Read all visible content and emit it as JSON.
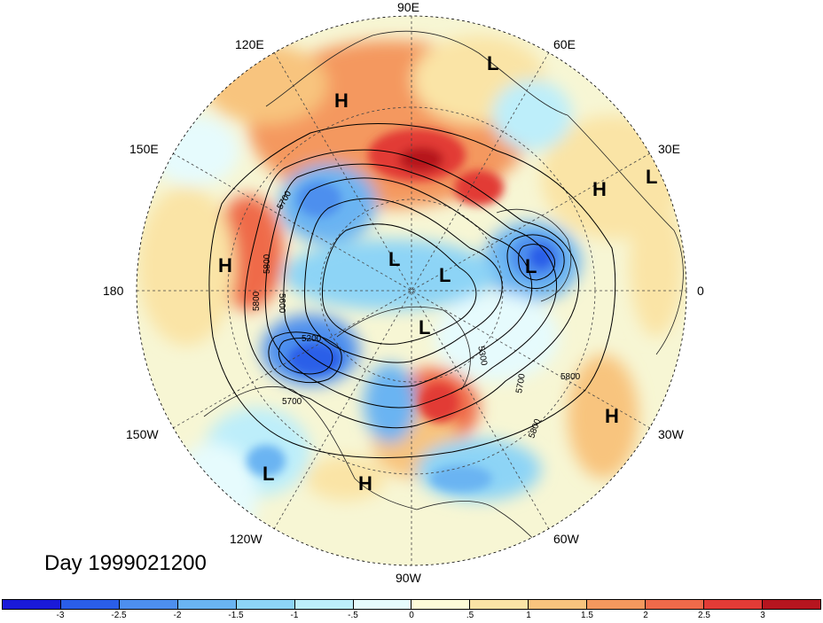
{
  "title": "Day 1999021200",
  "lon_labels": {
    "n90e": "90E",
    "n120e": "120E",
    "n60e": "60E",
    "n150e": "150E",
    "n30e": "30E",
    "n180": "180",
    "n0": "0",
    "n150w": "150W",
    "n30w": "30W",
    "n120w": "120W",
    "n60w": "60W",
    "n90w": "90W"
  },
  "pressure_centers": {
    "h_siberia": "H",
    "l_northeast": "L",
    "h_europe": "H",
    "l_europe_edge": "L",
    "h_pacific": "H",
    "l_arctic_1": "L",
    "l_arctic_2": "L",
    "l_atlantic": "L",
    "l_canada": "L",
    "h_atlantic": "H",
    "l_east_pacific": "L",
    "h_gulf": "H"
  },
  "contour_labels": {
    "c5700_a": "5700",
    "c5800_a": "5800",
    "c5600_a": "5600",
    "c5800_b": "5800",
    "c5200": "5200",
    "c5700_b": "5700",
    "c5300": "5300",
    "c5700_c": "5700",
    "c5800_c": "5800",
    "c5800_d": "5800"
  },
  "colorbar": {
    "colors": [
      "#1a1ad8",
      "#2a5ee8",
      "#4d8fee",
      "#6ab4f2",
      "#8dd4f6",
      "#bdeefa",
      "#e6fbfd",
      "#fdfbd8",
      "#fae4a6",
      "#f8c47e",
      "#f4985e",
      "#ef6a4a",
      "#e23b36",
      "#b6151f"
    ],
    "ticks": [
      "-3",
      "-2.5",
      "-2",
      "-1.5",
      "-1",
      "-.5",
      "0",
      ".5",
      "1",
      "1.5",
      "2",
      "2.5",
      "3"
    ]
  },
  "colors": {
    "grid": "#444444",
    "contour": "#000000"
  }
}
